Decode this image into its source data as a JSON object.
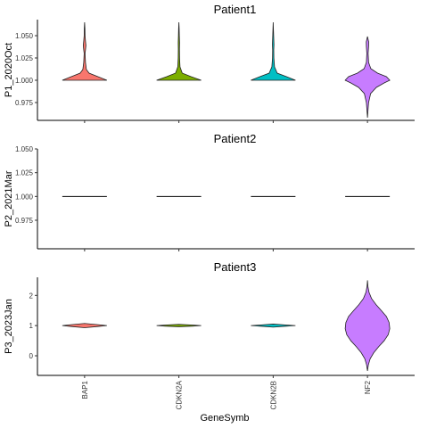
{
  "chart_data": {
    "type": "violin",
    "xlabel": "GeneSymb",
    "categories": [
      "BAP1",
      "CDKN2A",
      "CDKN2B",
      "NF2"
    ],
    "colors": [
      "#F8766D",
      "#7CAE00",
      "#00BFC4",
      "#C77CFF"
    ],
    "panels": [
      {
        "title": "Patient1",
        "ylabel": "P1_2020Oct",
        "ylim": [
          0.955,
          1.068
        ],
        "yticks": [
          "0.975",
          "1.000",
          "1.025",
          "1.050"
        ],
        "ytick_values": [
          0.975,
          1.0,
          1.025,
          1.05
        ],
        "violins": [
          {
            "min": 1.0,
            "max": 1.065,
            "profile": [
              [
                1.0,
                1.0
              ],
              [
                1.004,
                0.6
              ],
              [
                1.008,
                0.2
              ],
              [
                1.012,
                0.08
              ],
              [
                1.02,
                0.04
              ],
              [
                1.03,
                0.02
              ],
              [
                1.034,
                0.04
              ],
              [
                1.039,
                0.06
              ],
              [
                1.044,
                0.04
              ],
              [
                1.05,
                0.02
              ],
              [
                1.058,
                0.015
              ],
              [
                1.065,
                0.0
              ]
            ]
          },
          {
            "min": 1.0,
            "max": 1.065,
            "profile": [
              [
                1.0,
                1.0
              ],
              [
                1.004,
                0.55
              ],
              [
                1.008,
                0.15
              ],
              [
                1.015,
                0.05
              ],
              [
                1.025,
                0.03
              ],
              [
                1.035,
                0.025
              ],
              [
                1.042,
                0.03
              ],
              [
                1.05,
                0.02
              ],
              [
                1.058,
                0.012
              ],
              [
                1.065,
                0.0
              ]
            ]
          },
          {
            "min": 1.0,
            "max": 1.065,
            "profile": [
              [
                1.0,
                1.0
              ],
              [
                1.004,
                0.6
              ],
              [
                1.008,
                0.18
              ],
              [
                1.015,
                0.06
              ],
              [
                1.025,
                0.03
              ],
              [
                1.034,
                0.025
              ],
              [
                1.04,
                0.035
              ],
              [
                1.047,
                0.025
              ],
              [
                1.056,
                0.012
              ],
              [
                1.065,
                0.0
              ]
            ]
          },
          {
            "min": 0.958,
            "max": 1.049,
            "profile": [
              [
                0.958,
                0.0
              ],
              [
                0.965,
                0.02
              ],
              [
                0.975,
                0.05
              ],
              [
                0.985,
                0.14
              ],
              [
                0.992,
                0.4
              ],
              [
                0.997,
                0.75
              ],
              [
                1.0,
                1.0
              ],
              [
                1.004,
                0.85
              ],
              [
                1.008,
                0.45
              ],
              [
                1.013,
                0.15
              ],
              [
                1.02,
                0.05
              ],
              [
                1.03,
                0.03
              ],
              [
                1.038,
                0.05
              ],
              [
                1.043,
                0.055
              ],
              [
                1.049,
                0.0
              ]
            ]
          }
        ]
      },
      {
        "title": "Patient2",
        "ylabel": "P2_2021Mar",
        "ylim": [
          0.945,
          1.05
        ],
        "yticks": [
          "0.975",
          "1.000",
          "1.025",
          "1.050"
        ],
        "ytick_values": [
          0.975,
          1.0,
          1.025,
          1.05
        ],
        "violins": [
          {
            "min": 1.0,
            "max": 1.0,
            "profile": []
          },
          {
            "min": 1.0,
            "max": 1.0,
            "profile": []
          },
          {
            "min": 1.0,
            "max": 1.0,
            "profile": []
          },
          {
            "min": 1.0,
            "max": 1.0,
            "profile": []
          }
        ]
      },
      {
        "title": "Patient3",
        "ylabel": "P3_2023Jan",
        "ylim": [
          -0.65,
          2.6
        ],
        "yticks": [
          "0",
          "1",
          "2"
        ],
        "ytick_values": [
          0,
          1,
          2
        ],
        "violins": [
          {
            "min": 0.93,
            "max": 1.07,
            "profile": [
              [
                0.93,
                0.0
              ],
              [
                0.97,
                0.6
              ],
              [
                1.0,
                1.0
              ],
              [
                1.03,
                0.6
              ],
              [
                1.07,
                0.0
              ]
            ]
          },
          {
            "min": 0.96,
            "max": 1.04,
            "profile": [
              [
                0.96,
                0.0
              ],
              [
                0.98,
                0.6
              ],
              [
                1.0,
                1.0
              ],
              [
                1.02,
                0.6
              ],
              [
                1.04,
                0.0
              ]
            ]
          },
          {
            "min": 0.95,
            "max": 1.05,
            "profile": [
              [
                0.95,
                0.0
              ],
              [
                0.98,
                0.6
              ],
              [
                1.0,
                1.0
              ],
              [
                1.02,
                0.6
              ],
              [
                1.05,
                0.0
              ]
            ]
          },
          {
            "min": -0.5,
            "max": 2.5,
            "profile": [
              [
                -0.5,
                0.0
              ],
              [
                -0.3,
                0.04
              ],
              [
                -0.1,
                0.12
              ],
              [
                0.1,
                0.28
              ],
              [
                0.3,
                0.5
              ],
              [
                0.5,
                0.75
              ],
              [
                0.7,
                0.93
              ],
              [
                0.9,
                1.0
              ],
              [
                1.1,
                0.97
              ],
              [
                1.3,
                0.85
              ],
              [
                1.5,
                0.62
              ],
              [
                1.7,
                0.38
              ],
              [
                1.9,
                0.18
              ],
              [
                2.1,
                0.07
              ],
              [
                2.3,
                0.02
              ],
              [
                2.5,
                0.0
              ]
            ]
          }
        ]
      }
    ]
  }
}
